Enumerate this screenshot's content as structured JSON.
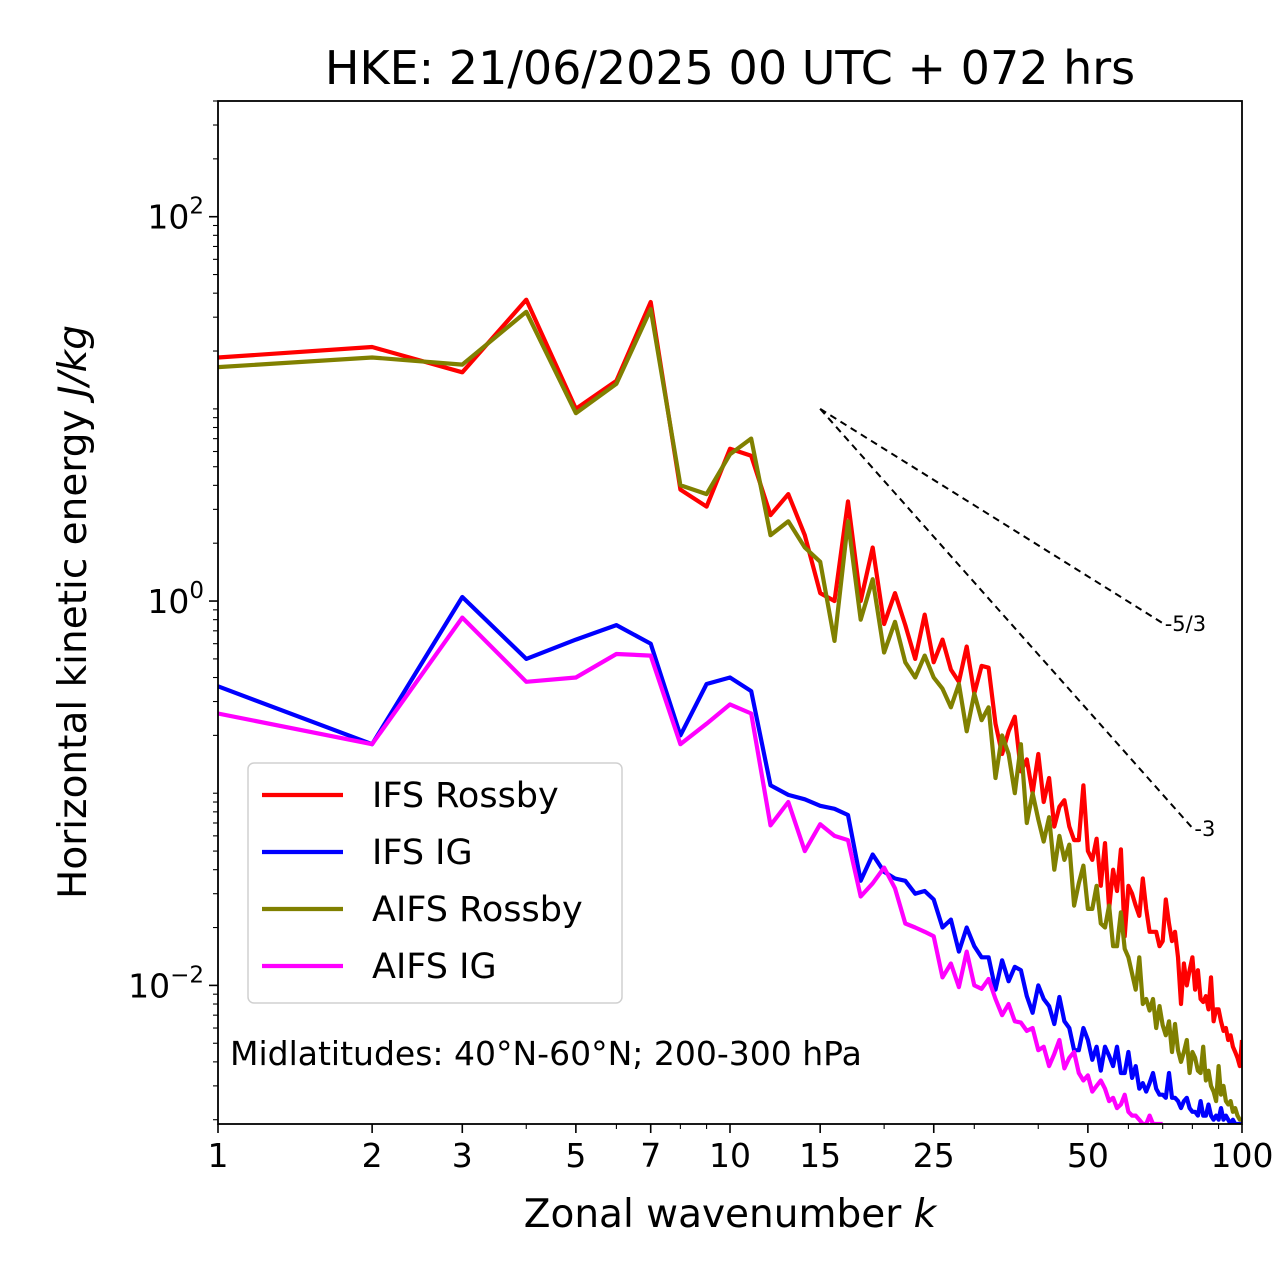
{
  "chart_data": {
    "type": "line",
    "title": "HKE: 21/06/2025 00 UTC + 072 hrs",
    "xlabel": "Zonal wavenumber ",
    "xlabel_var": "k",
    "ylabel": "Horizontal kinetic energy ",
    "ylabel_unit": "J/kg",
    "xscale": "log",
    "yscale": "log",
    "xlim": [
      1,
      100
    ],
    "ylim": [
      0.0019,
      400
    ],
    "x_ticks": [
      1,
      2,
      3,
      5,
      7,
      10,
      15,
      25,
      50,
      100
    ],
    "x_tick_labels": [
      "1",
      "2",
      "3",
      "5",
      "7",
      "10",
      "15",
      "25",
      "50",
      "100"
    ],
    "y_ticks": [
      {
        "value": 100,
        "base": "10",
        "exp": "2"
      },
      {
        "value": 1,
        "base": "10",
        "exp": "0"
      },
      {
        "value": 0.01,
        "base": "10",
        "exp": "−2"
      }
    ],
    "legend_position": "lower-left",
    "annotation": "Midlatitudes: 40°N-60°N; 200-300 hPa",
    "reference_slopes": [
      {
        "label": "-5/3",
        "slope": -1.6667,
        "x_start": 15,
        "x_end": 70,
        "y_start": 10
      },
      {
        "label": "-3",
        "slope": -3,
        "x_start": 15,
        "x_end": 80,
        "y_start": 10
      }
    ],
    "series": [
      {
        "name": "IFS Rossby",
        "color": "#ff0000",
        "x": [
          1,
          2,
          3,
          4,
          5,
          6,
          7,
          8,
          9,
          10,
          11,
          12,
          13,
          14,
          15,
          16,
          17,
          18,
          19,
          20,
          21,
          22,
          23,
          24,
          25,
          26,
          27,
          28,
          29,
          30,
          31,
          32,
          33,
          34,
          35,
          36,
          37,
          38,
          39,
          40,
          41,
          42,
          43,
          44,
          45,
          46,
          47,
          48,
          49,
          50,
          51,
          52,
          53,
          54,
          55,
          56,
          57,
          58,
          59,
          60,
          61,
          62,
          63,
          64,
          65,
          66,
          67,
          68,
          69,
          70,
          71,
          72,
          73,
          74,
          75,
          76,
          77,
          78,
          79,
          80,
          81,
          82,
          83,
          84,
          85,
          86,
          87,
          88,
          89,
          90,
          91,
          92,
          93,
          94,
          95,
          96,
          97,
          98,
          99,
          100
        ],
        "y": [
          18.5,
          21,
          15.5,
          37,
          10,
          14,
          36,
          3.8,
          3.1,
          6.2,
          5.7,
          2.8,
          3.6,
          2.2,
          1.1,
          1.0,
          3.3,
          1.0,
          1.9,
          0.76,
          1.1,
          0.75,
          0.5,
          0.85,
          0.48,
          0.63,
          0.44,
          0.38,
          0.58,
          0.33,
          0.46,
          0.45,
          0.23,
          0.16,
          0.21,
          0.25,
          0.13,
          0.15,
          0.1,
          0.16,
          0.09,
          0.12,
          0.067,
          0.085,
          0.092,
          0.067,
          0.057,
          0.057,
          0.11,
          0.05,
          0.045,
          0.058,
          0.033,
          0.055,
          0.025,
          0.04,
          0.031,
          0.051,
          0.018,
          0.033,
          0.03,
          0.026,
          0.023,
          0.036,
          0.025,
          0.019,
          0.019,
          0.019,
          0.016,
          0.017,
          0.028,
          0.021,
          0.017,
          0.019,
          0.014,
          0.008,
          0.013,
          0.01,
          0.012,
          0.014,
          0.0095,
          0.012,
          0.0085,
          0.0082,
          0.0088,
          0.0075,
          0.011,
          0.0065,
          0.0075,
          0.0075,
          0.0065,
          0.0058,
          0.006,
          0.0052,
          0.0055,
          0.0048,
          0.0045,
          0.0042,
          0.0038,
          0.0052
        ]
      },
      {
        "name": "IFS IG",
        "color": "#0000ff",
        "x": [
          1,
          2,
          3,
          4,
          5,
          6,
          7,
          8,
          9,
          10,
          11,
          12,
          13,
          14,
          15,
          16,
          17,
          18,
          19,
          20,
          21,
          22,
          23,
          24,
          25,
          26,
          27,
          28,
          29,
          30,
          31,
          32,
          33,
          34,
          35,
          36,
          37,
          38,
          39,
          40,
          41,
          42,
          43,
          44,
          45,
          46,
          47,
          48,
          49,
          50,
          51,
          52,
          53,
          54,
          55,
          56,
          57,
          58,
          59,
          60,
          61,
          62,
          63,
          64,
          65,
          66,
          67,
          68,
          69,
          70,
          71,
          72,
          73,
          74,
          75,
          76,
          77,
          78,
          79,
          80,
          81,
          82,
          83,
          84,
          85,
          86,
          87,
          88,
          89,
          90,
          91,
          92,
          93,
          94,
          95,
          96,
          97,
          98,
          99,
          100
        ],
        "y": [
          0.36,
          0.18,
          1.05,
          0.5,
          0.63,
          0.75,
          0.6,
          0.2,
          0.37,
          0.4,
          0.34,
          0.11,
          0.098,
          0.093,
          0.086,
          0.083,
          0.077,
          0.035,
          0.048,
          0.039,
          0.036,
          0.035,
          0.03,
          0.031,
          0.028,
          0.02,
          0.022,
          0.015,
          0.02,
          0.016,
          0.014,
          0.014,
          0.0095,
          0.0135,
          0.0105,
          0.0125,
          0.012,
          0.0088,
          0.0072,
          0.01,
          0.0085,
          0.0078,
          0.0063,
          0.0087,
          0.0065,
          0.006,
          0.0046,
          0.0046,
          0.006,
          0.0052,
          0.0041,
          0.0048,
          0.0036,
          0.0048,
          0.0043,
          0.0038,
          0.0048,
          0.0035,
          0.0035,
          0.0045,
          0.0033,
          0.0038,
          0.0029,
          0.0031,
          0.0028,
          0.0031,
          0.0035,
          0.0029,
          0.0027,
          0.0027,
          0.0026,
          0.0035,
          0.0026,
          0.0026,
          0.0025,
          0.0023,
          0.0025,
          0.0026,
          0.0023,
          0.0022,
          0.0022,
          0.0021,
          0.0025,
          0.0021,
          0.0021,
          0.0024,
          0.0021,
          0.002,
          0.0021,
          0.002,
          0.0023,
          0.002,
          0.0021,
          0.002,
          0.0019,
          0.002,
          0.0019,
          0.0019,
          0.0019,
          0.0019
        ]
      },
      {
        "name": "AIFS Rossby",
        "color": "#808000",
        "x": [
          1,
          2,
          3,
          4,
          5,
          6,
          7,
          8,
          9,
          10,
          11,
          12,
          13,
          14,
          15,
          16,
          17,
          18,
          19,
          20,
          21,
          22,
          23,
          24,
          25,
          26,
          27,
          28,
          29,
          30,
          31,
          32,
          33,
          34,
          35,
          36,
          37,
          38,
          39,
          40,
          41,
          42,
          43,
          44,
          45,
          46,
          47,
          48,
          49,
          50,
          51,
          52,
          53,
          54,
          55,
          56,
          57,
          58,
          59,
          60,
          61,
          62,
          63,
          64,
          65,
          66,
          67,
          68,
          69,
          70,
          71,
          72,
          73,
          74,
          75,
          76,
          77,
          78,
          79,
          80,
          81,
          82,
          83,
          84,
          85,
          86,
          87,
          88,
          89,
          90,
          91,
          92,
          93,
          94,
          95,
          96,
          97,
          98,
          99,
          100
        ],
        "y": [
          16.5,
          18.5,
          17,
          32,
          9.5,
          13.5,
          33,
          4,
          3.6,
          5.8,
          7,
          2.2,
          2.6,
          1.9,
          1.6,
          0.62,
          2.6,
          0.8,
          1.3,
          0.54,
          0.78,
          0.48,
          0.4,
          0.52,
          0.4,
          0.35,
          0.28,
          0.37,
          0.21,
          0.33,
          0.24,
          0.28,
          0.12,
          0.2,
          0.16,
          0.1,
          0.18,
          0.07,
          0.1,
          0.073,
          0.056,
          0.075,
          0.04,
          0.06,
          0.045,
          0.054,
          0.026,
          0.034,
          0.042,
          0.025,
          0.025,
          0.033,
          0.021,
          0.02,
          0.026,
          0.016,
          0.016,
          0.024,
          0.0155,
          0.014,
          0.0115,
          0.0095,
          0.014,
          0.008,
          0.0085,
          0.0074,
          0.0085,
          0.006,
          0.0078,
          0.0062,
          0.0055,
          0.0065,
          0.0045,
          0.0063,
          0.0046,
          0.004,
          0.0045,
          0.0052,
          0.0035,
          0.0045,
          0.0042,
          0.0036,
          0.0035,
          0.0048,
          0.0032,
          0.0036,
          0.003,
          0.0028,
          0.0025,
          0.0038,
          0.0027,
          0.003,
          0.0025,
          0.0024,
          0.0025,
          0.0022,
          0.0023,
          0.0021,
          0.002,
          0.002
        ]
      },
      {
        "name": "AIFS IG",
        "color": "#ff00ff",
        "x": [
          1,
          2,
          3,
          4,
          5,
          6,
          7,
          8,
          9,
          10,
          11,
          12,
          13,
          14,
          15,
          16,
          17,
          18,
          19,
          20,
          21,
          22,
          23,
          24,
          25,
          26,
          27,
          28,
          29,
          30,
          31,
          32,
          33,
          34,
          35,
          36,
          37,
          38,
          39,
          40,
          41,
          42,
          43,
          44,
          45,
          46,
          47,
          48,
          49,
          50,
          51,
          52,
          53,
          54,
          55,
          56,
          57,
          58,
          59,
          60,
          61,
          62,
          63,
          64,
          65,
          66,
          67,
          68,
          69,
          70
        ],
        "y": [
          0.26,
          0.18,
          0.82,
          0.38,
          0.4,
          0.53,
          0.52,
          0.18,
          0.23,
          0.29,
          0.26,
          0.068,
          0.09,
          0.05,
          0.069,
          0.06,
          0.057,
          0.029,
          0.034,
          0.041,
          0.032,
          0.021,
          0.02,
          0.019,
          0.018,
          0.011,
          0.013,
          0.0098,
          0.015,
          0.01,
          0.0096,
          0.0108,
          0.0085,
          0.007,
          0.008,
          0.0065,
          0.0064,
          0.0058,
          0.006,
          0.0046,
          0.0048,
          0.0038,
          0.0044,
          0.0052,
          0.0037,
          0.0042,
          0.0045,
          0.0035,
          0.0032,
          0.0034,
          0.0028,
          0.003,
          0.0032,
          0.0029,
          0.0025,
          0.0026,
          0.0023,
          0.0024,
          0.0027,
          0.0022,
          0.0021,
          0.0021,
          0.002,
          0.0019,
          0.0019,
          0.0021,
          0.0019,
          0.0019,
          0.0019,
          0.0019
        ]
      }
    ]
  }
}
